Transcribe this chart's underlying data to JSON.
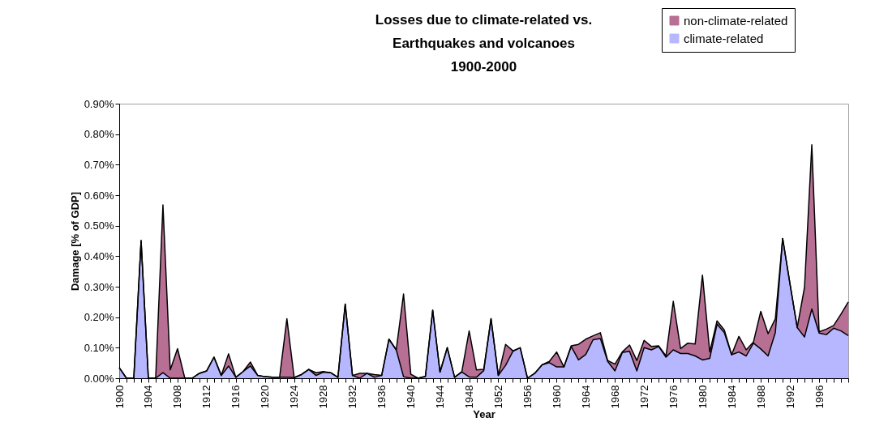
{
  "chart_data": {
    "type": "area",
    "title": "Losses due to climate-related vs.\nEarthquakes and volcanoes\n1900-2000",
    "xlabel": "Year",
    "ylabel": "Damage [% of GDP]",
    "categories": [
      "1900",
      null,
      null,
      null,
      "1904",
      null,
      null,
      null,
      "1908",
      null,
      null,
      null,
      "1912",
      null,
      null,
      null,
      "1916",
      null,
      null,
      null,
      "1920",
      null,
      null,
      null,
      "1924",
      null,
      null,
      null,
      "1928",
      null,
      null,
      null,
      "1932",
      null,
      null,
      null,
      "1936",
      null,
      null,
      null,
      "1940",
      null,
      null,
      null,
      "1944",
      null,
      null,
      null,
      "1948",
      null,
      null,
      null,
      "1952",
      null,
      null,
      null,
      "1956",
      null,
      null,
      null,
      "1960",
      null,
      null,
      null,
      "1964",
      null,
      null,
      null,
      "1968",
      null,
      null,
      null,
      "1972",
      null,
      null,
      null,
      "1976",
      null,
      null,
      null,
      "1980",
      null,
      null,
      null,
      "1984",
      null,
      null,
      null,
      "1988",
      null,
      null,
      null,
      "1992",
      null,
      null,
      null,
      "1996",
      null,
      null,
      null,
      null
    ],
    "stacked": true,
    "legend": "top right",
    "ylim": [
      0,
      0.9
    ],
    "yticks": [
      {
        "value": 0,
        "label": "0.00%"
      },
      {
        "value": 0.1,
        "label": "0.10%"
      },
      {
        "value": 0.2,
        "label": "0.20%"
      },
      {
        "value": 0.3,
        "label": "0.30%"
      },
      {
        "value": 0.4,
        "label": "0.40%"
      },
      {
        "value": 0.5,
        "label": "0.50%"
      },
      {
        "value": 0.6,
        "label": "0.60%"
      },
      {
        "value": 0.7,
        "label": "0.70%"
      },
      {
        "value": 0.8,
        "label": "0.80%"
      },
      {
        "value": 0.9,
        "label": "0.90%"
      }
    ],
    "series": [
      {
        "name": "climate-related",
        "color": "#9999ff",
        "values": [
          0.035,
          0,
          0,
          0.451,
          0,
          0,
          0.018,
          0,
          0,
          0,
          0,
          0.016,
          0.024,
          0.069,
          0.009,
          0.04,
          0.003,
          0.022,
          0.04,
          0.009,
          0.005,
          0.003,
          0.003,
          0.003,
          0.002,
          0.012,
          0.029,
          0.009,
          0.02,
          0.018,
          0.003,
          0.243,
          0.009,
          0,
          0.016,
          0.003,
          0.009,
          0.128,
          0.093,
          0.005,
          0,
          0,
          0.006,
          0.223,
          0.02,
          0.1,
          0.003,
          0.02,
          0.004,
          0.003,
          0.025,
          0.195,
          0.009,
          0.042,
          0.088,
          0.1,
          0,
          0.016,
          0.044,
          0.051,
          0.037,
          0.037,
          0.104,
          0.06,
          0.078,
          0.126,
          0.13,
          0.055,
          0.024,
          0.084,
          0.088,
          0.024,
          0.1,
          0.093,
          0.104,
          0.069,
          0.093,
          0.081,
          0.081,
          0.073,
          0.06,
          0.065,
          0.177,
          0.149,
          0.077,
          0.086,
          0.073,
          0.115,
          0.096,
          0.073,
          0.15,
          0.458,
          0.31,
          0.166,
          0.135,
          0.227,
          0.148,
          0.143,
          0.164,
          0.155,
          0.14
        ]
      },
      {
        "name": "non-climate-related",
        "color": "#993366",
        "values": [
          0,
          0,
          0,
          0,
          0,
          0,
          0.55,
          0.027,
          0.097,
          0,
          0,
          0,
          0,
          0,
          0,
          0.04,
          0,
          0,
          0.013,
          0,
          0,
          0,
          0,
          0.192,
          0,
          0,
          0,
          0.009,
          0.002,
          0,
          0,
          0,
          0,
          0.016,
          0,
          0.009,
          0,
          0,
          0,
          0.271,
          0.013,
          0,
          0,
          0,
          0,
          0,
          0,
          0.002,
          0.151,
          0.024,
          0.004,
          0,
          0,
          0.069,
          0.002,
          0,
          0,
          0,
          0,
          0.004,
          0.049,
          0,
          0.002,
          0.051,
          0.05,
          0.013,
          0.019,
          0.003,
          0.022,
          0.002,
          0.021,
          0.034,
          0.024,
          0.011,
          0.002,
          0.004,
          0.159,
          0.016,
          0.034,
          0.039,
          0.278,
          0.021,
          0.011,
          0.009,
          0,
          0.051,
          0.02,
          0.004,
          0.123,
          0.073,
          0.045,
          0,
          0,
          0,
          0.163,
          0.538,
          0.004,
          0.018,
          0.009,
          0.055,
          0.11
        ]
      }
    ]
  }
}
